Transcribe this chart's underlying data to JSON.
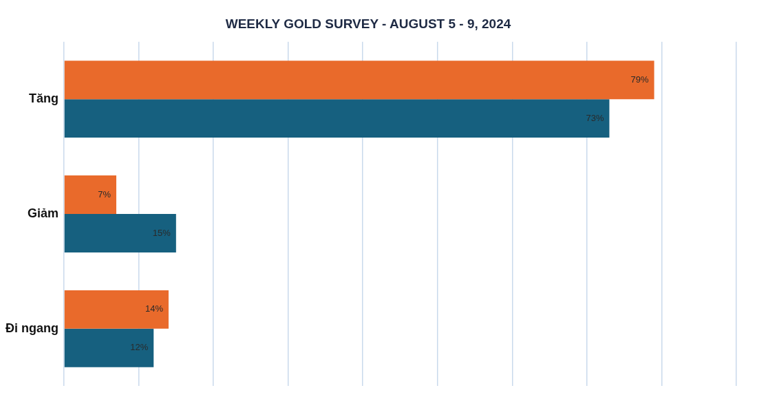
{
  "chart_data": {
    "type": "bar",
    "orientation": "horizontal",
    "title": "WEEKLY GOLD SURVEY - AUGUST 5 - 9, 2024",
    "categories": [
      "Tăng",
      "Giảm",
      "Đi ngang"
    ],
    "series": [
      {
        "color": "#e96a2b",
        "values": [
          79,
          7,
          14
        ],
        "value_labels": [
          "79%",
          "7%",
          "14%"
        ]
      },
      {
        "color": "#16607f",
        "values": [
          73,
          15,
          12
        ],
        "value_labels": [
          "73%",
          "15%",
          "12%"
        ]
      }
    ],
    "xlim": [
      0,
      90
    ],
    "xticks": [
      {
        "value": 0,
        "label": null
      },
      {
        "value": 10,
        "label": null
      },
      {
        "value": 20,
        "label": null
      },
      {
        "value": 30,
        "label": null
      },
      {
        "value": 40,
        "label": null
      },
      {
        "value": 50,
        "label": null
      },
      {
        "value": 60,
        "label": null
      },
      {
        "value": 70,
        "label": null
      },
      {
        "value": 80,
        "label": null
      },
      {
        "value": 90,
        "label": null
      }
    ],
    "grid": "x",
    "legend": false,
    "tick_labels": "y"
  }
}
